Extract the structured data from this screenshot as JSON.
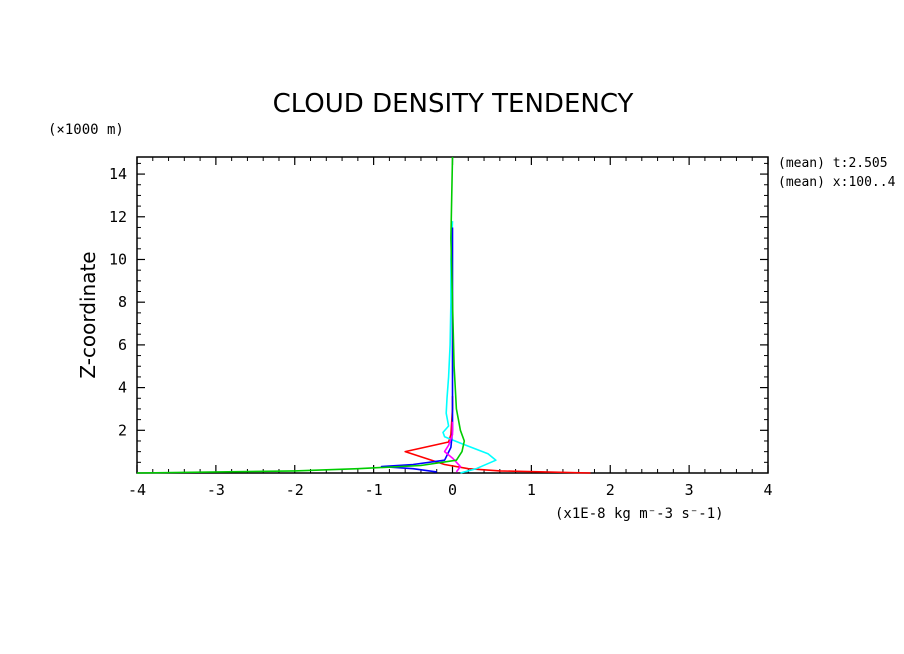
{
  "chart_data": {
    "type": "line",
    "title": "CLOUD DENSITY TENDENCY",
    "y_units_label": "(×1000 m)",
    "ylabel": "Z-coordinate",
    "xlabel": "(x1E-8 kg m⁻-3 s⁻-1)",
    "xlim": [
      -4,
      4
    ],
    "ylim": [
      0,
      14.8
    ],
    "x_ticks": [
      -4,
      -3,
      -2,
      -1,
      0,
      1,
      2,
      3,
      4
    ],
    "y_ticks": [
      2,
      4,
      6,
      8,
      10,
      12,
      14
    ],
    "grid": false,
    "annotations": [
      "(mean) t:2.505",
      "(mean) x:100..4"
    ],
    "series": [
      {
        "color": "#ff0000",
        "points": [
          [
            1.75,
            0.0
          ],
          [
            0.6,
            0.1
          ],
          [
            0.2,
            0.2
          ],
          [
            -0.1,
            0.4
          ],
          [
            -0.6,
            1.0
          ],
          [
            -0.05,
            1.45
          ],
          [
            -0.02,
            1.8
          ],
          [
            0.0,
            3.0
          ],
          [
            0.0,
            3.6
          ]
        ]
      },
      {
        "color": "#00ffff",
        "points": [
          [
            0.1,
            0.0
          ],
          [
            0.3,
            0.2
          ],
          [
            0.55,
            0.6
          ],
          [
            0.45,
            0.9
          ],
          [
            0.1,
            1.4
          ],
          [
            -0.1,
            1.7
          ],
          [
            -0.12,
            1.9
          ],
          [
            -0.05,
            2.2
          ],
          [
            -0.08,
            2.8
          ],
          [
            -0.07,
            3.5
          ],
          [
            -0.05,
            4.5
          ],
          [
            -0.03,
            6.0
          ],
          [
            -0.02,
            8.0
          ],
          [
            -0.02,
            10.0
          ],
          [
            0.0,
            11.8
          ]
        ]
      },
      {
        "color": "#0000ff",
        "points": [
          [
            -0.2,
            0.05
          ],
          [
            -0.5,
            0.2
          ],
          [
            -0.9,
            0.3
          ],
          [
            -0.5,
            0.4
          ],
          [
            -0.1,
            0.6
          ],
          [
            -0.02,
            1.2
          ],
          [
            0.0,
            2.0
          ],
          [
            0.0,
            5.0
          ],
          [
            0.0,
            8.0
          ],
          [
            0.0,
            11.5
          ]
        ]
      },
      {
        "color": "#ff00ff",
        "points": [
          [
            0.05,
            0.05
          ],
          [
            0.1,
            0.3
          ],
          [
            0.0,
            0.7
          ],
          [
            -0.1,
            1.0
          ],
          [
            -0.05,
            1.3
          ],
          [
            0.0,
            1.8
          ],
          [
            0.0,
            2.4
          ]
        ]
      },
      {
        "color": "#00cc00",
        "points": [
          [
            -4.0,
            0.0
          ],
          [
            -2.0,
            0.1
          ],
          [
            -1.2,
            0.2
          ],
          [
            -0.4,
            0.35
          ],
          [
            0.05,
            0.6
          ],
          [
            0.12,
            1.0
          ],
          [
            0.15,
            1.5
          ],
          [
            0.1,
            2.0
          ],
          [
            0.05,
            3.0
          ],
          [
            0.02,
            5.0
          ],
          [
            0.0,
            8.0
          ],
          [
            -0.02,
            11.0
          ],
          [
            0.0,
            14.8
          ]
        ]
      }
    ]
  }
}
